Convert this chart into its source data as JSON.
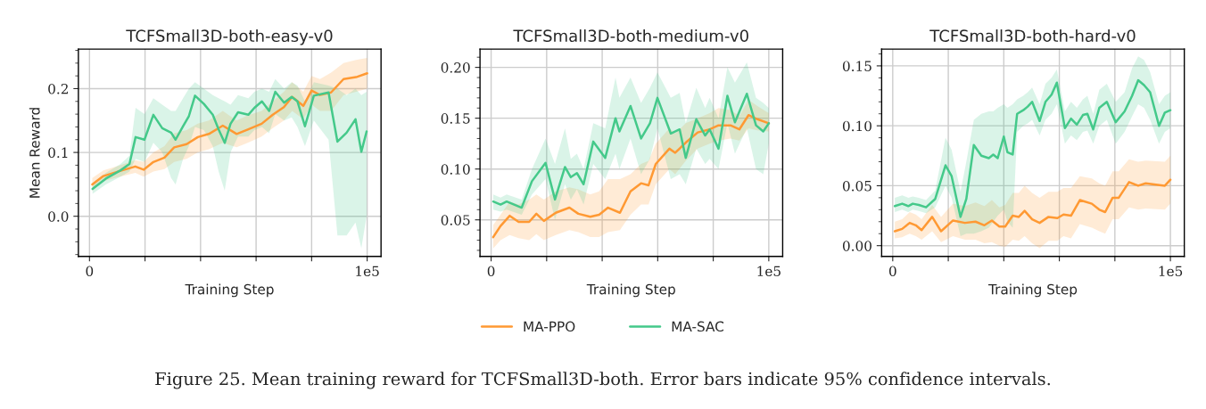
{
  "chart_data": [
    {
      "type": "line",
      "title": "TCFSmall3D-both-easy-v0",
      "xlabel": "Training Step",
      "ylabel": "Mean Reward",
      "grid": true,
      "legend": "bottom",
      "xlim": [
        -4000,
        105000
      ],
      "xticks": [
        0,
        {
          "value": 20000,
          "label": null
        },
        {
          "value": 40000,
          "label": null
        },
        {
          "value": 60000,
          "label": null
        },
        {
          "value": 80000,
          "label": null
        },
        {
          "value": 100000,
          "label": "1e5"
        }
      ],
      "ylim": [
        -0.063,
        0.262
      ],
      "yticks": [
        {
          "value": 0.0,
          "label": "0.0"
        },
        0.1,
        0.2
      ],
      "series": [
        {
          "name": "MA-PPO",
          "color": "#ff9933",
          "x": [
            1000,
            5000,
            11000,
            16500,
            19500,
            23000,
            27000,
            30500,
            35000,
            39000,
            43000,
            48000,
            53000,
            57000,
            62000,
            66000,
            70000,
            73000,
            77000,
            80000,
            83000,
            87000,
            91500,
            96000,
            100000
          ],
          "values": [
            0.05,
            0.063,
            0.071,
            0.078,
            0.073,
            0.085,
            0.092,
            0.108,
            0.113,
            0.124,
            0.129,
            0.142,
            0.129,
            0.136,
            0.145,
            0.159,
            0.171,
            0.187,
            0.173,
            0.197,
            0.19,
            0.194,
            0.215,
            0.218,
            0.224
          ],
          "lower": [
            0.04,
            0.055,
            0.062,
            0.068,
            0.062,
            0.07,
            0.074,
            0.085,
            0.09,
            0.1,
            0.105,
            0.115,
            0.108,
            0.115,
            0.125,
            0.138,
            0.15,
            0.165,
            0.152,
            0.175,
            0.165,
            0.165,
            0.19,
            0.195,
            0.2
          ],
          "upper": [
            0.06,
            0.072,
            0.08,
            0.088,
            0.085,
            0.1,
            0.11,
            0.13,
            0.135,
            0.145,
            0.15,
            0.165,
            0.15,
            0.158,
            0.165,
            0.18,
            0.195,
            0.21,
            0.195,
            0.22,
            0.215,
            0.225,
            0.24,
            0.245,
            0.248
          ]
        },
        {
          "name": "MA-SAC",
          "color": "#44c98a",
          "x": [
            1100,
            5900,
            11200,
            14400,
            16600,
            19800,
            23000,
            26200,
            29400,
            31000,
            33700,
            35800,
            38000,
            41200,
            44400,
            46500,
            48700,
            50800,
            53500,
            57200,
            59400,
            62100,
            64700,
            66900,
            70100,
            72800,
            74900,
            77600,
            80800,
            86100,
            89300,
            92600,
            95800,
            97900,
            99800
          ],
          "values": [
            0.043,
            0.059,
            0.072,
            0.082,
            0.124,
            0.12,
            0.159,
            0.138,
            0.131,
            0.12,
            0.141,
            0.157,
            0.189,
            0.176,
            0.159,
            0.136,
            0.115,
            0.145,
            0.163,
            0.159,
            0.17,
            0.18,
            0.165,
            0.195,
            0.178,
            0.187,
            0.18,
            0.141,
            0.189,
            0.194,
            0.117,
            0.131,
            0.152,
            0.101,
            0.133
          ],
          "lower": [
            0.035,
            0.05,
            0.062,
            0.07,
            0.09,
            0.085,
            0.115,
            0.1,
            0.06,
            0.05,
            0.09,
            0.11,
            0.14,
            0.135,
            0.11,
            0.07,
            0.04,
            0.1,
            0.125,
            0.125,
            0.135,
            0.14,
            0.13,
            0.16,
            0.15,
            0.155,
            0.14,
            0.11,
            0.15,
            0.12,
            -0.03,
            -0.03,
            -0.01,
            -0.05,
            0.0
          ],
          "upper": [
            0.052,
            0.068,
            0.082,
            0.095,
            0.17,
            0.16,
            0.185,
            0.175,
            0.165,
            0.165,
            0.185,
            0.2,
            0.21,
            0.2,
            0.19,
            0.185,
            0.18,
            0.175,
            0.19,
            0.185,
            0.195,
            0.2,
            0.195,
            0.215,
            0.2,
            0.21,
            0.205,
            0.18,
            0.21,
            0.205,
            0.2,
            0.19,
            0.2,
            0.19,
            0.195
          ]
        }
      ]
    },
    {
      "type": "line",
      "title": "TCFSmall3D-both-medium-v0",
      "xlabel": "Training Step",
      "grid": true,
      "annotations": [
        "Figure 25. Mean training reward for TCFSmall3D-both. Error bars indicate 95% confidence intervals."
      ],
      "xlim": [
        -4000,
        105000
      ],
      "xticks": [
        0,
        {
          "value": 20000,
          "label": null
        },
        {
          "value": 40000,
          "label": null
        },
        {
          "value": 60000,
          "label": null
        },
        {
          "value": 80000,
          "label": null
        },
        {
          "value": 100000,
          "label": "1e5"
        }
      ],
      "ylim": [
        0.014,
        0.218
      ],
      "yticks": [
        0.05,
        {
          "value": 0.1,
          "label": "0.10"
        },
        0.15,
        {
          "value": 0.2,
          "label": "0.20"
        }
      ],
      "series": [
        {
          "color": "#ff9933",
          "x": [
            750,
            3400,
            6700,
            9900,
            13700,
            16300,
            19000,
            23300,
            28200,
            31400,
            35700,
            38900,
            42100,
            46400,
            50200,
            54000,
            56700,
            59300,
            64200,
            66300,
            70100,
            74400,
            78700,
            81900,
            86200,
            89400,
            92700,
            95900,
            100000
          ],
          "values": [
            0.033,
            0.044,
            0.054,
            0.048,
            0.048,
            0.056,
            0.049,
            0.057,
            0.062,
            0.056,
            0.053,
            0.055,
            0.062,
            0.057,
            0.078,
            0.086,
            0.084,
            0.105,
            0.12,
            0.116,
            0.126,
            0.136,
            0.139,
            0.143,
            0.143,
            0.139,
            0.153,
            0.149,
            0.145
          ],
          "lower": [
            0.022,
            0.03,
            0.035,
            0.032,
            0.03,
            0.036,
            0.03,
            0.035,
            0.04,
            0.038,
            0.033,
            0.033,
            0.038,
            0.04,
            0.055,
            0.065,
            0.065,
            0.085,
            0.1,
            0.095,
            0.108,
            0.12,
            0.125,
            0.128,
            0.13,
            0.128,
            0.14,
            0.138,
            0.137
          ],
          "upper": [
            0.045,
            0.055,
            0.068,
            0.065,
            0.07,
            0.075,
            0.07,
            0.078,
            0.082,
            0.08,
            0.075,
            0.078,
            0.09,
            0.09,
            0.095,
            0.105,
            0.108,
            0.125,
            0.14,
            0.135,
            0.145,
            0.15,
            0.155,
            0.16,
            0.158,
            0.152,
            0.168,
            0.162,
            0.155
          ]
        },
        {
          "color": "#44c98a",
          "x": [
            750,
            3400,
            5600,
            11000,
            14700,
            19600,
            23000,
            26600,
            28700,
            30900,
            33300,
            36800,
            41100,
            44800,
            46200,
            50200,
            54000,
            57200,
            59900,
            64700,
            67900,
            70100,
            73900,
            77100,
            78700,
            81900,
            85100,
            87800,
            92100,
            95400,
            98000,
            100000
          ],
          "values": [
            0.068,
            0.065,
            0.068,
            0.062,
            0.088,
            0.106,
            0.07,
            0.102,
            0.092,
            0.096,
            0.085,
            0.127,
            0.111,
            0.15,
            0.137,
            0.162,
            0.13,
            0.145,
            0.17,
            0.135,
            0.139,
            0.111,
            0.149,
            0.133,
            0.139,
            0.12,
            0.172,
            0.146,
            0.174,
            0.143,
            0.137,
            0.145
          ],
          "lower": [
            0.06,
            0.058,
            0.06,
            0.055,
            0.075,
            0.09,
            0.05,
            0.085,
            0.07,
            0.08,
            0.065,
            0.105,
            0.09,
            0.115,
            0.1,
            0.13,
            0.095,
            0.11,
            0.14,
            0.09,
            0.095,
            0.085,
            0.12,
            0.105,
            0.11,
            0.1,
            0.145,
            0.115,
            0.14,
            0.1,
            0.095,
            0.125
          ],
          "upper": [
            0.075,
            0.072,
            0.075,
            0.07,
            0.1,
            0.13,
            0.105,
            0.14,
            0.11,
            0.115,
            0.1,
            0.145,
            0.14,
            0.19,
            0.17,
            0.19,
            0.165,
            0.18,
            0.195,
            0.17,
            0.175,
            0.145,
            0.18,
            0.16,
            0.17,
            0.15,
            0.2,
            0.185,
            0.205,
            0.17,
            0.165,
            0.16
          ]
        }
      ]
    },
    {
      "type": "line",
      "title": "TCFSmall3D-both-hard-v0",
      "xlabel": "Training Step",
      "grid": true,
      "xlim": [
        -4000,
        105000
      ],
      "xticks": [
        0,
        {
          "value": 20000,
          "label": null
        },
        {
          "value": 40000,
          "label": null
        },
        {
          "value": 60000,
          "label": null
        },
        {
          "value": 80000,
          "label": null
        },
        {
          "value": 100000,
          "label": "1e5"
        }
      ],
      "ylim": [
        -0.009,
        0.164
      ],
      "yticks": [
        {
          "value": 0.0,
          "label": "0.00"
        },
        0.05,
        {
          "value": 0.1,
          "label": "0.10"
        },
        0.15
      ],
      "series": [
        {
          "color": "#ff9933",
          "x": [
            750,
            3400,
            6100,
            8300,
            10400,
            14200,
            17400,
            21700,
            26000,
            29800,
            33000,
            35700,
            38400,
            40500,
            43200,
            45400,
            47500,
            50200,
            52900,
            56100,
            59300,
            61500,
            64200,
            67400,
            71700,
            74400,
            76500,
            79200,
            81400,
            85100,
            88400,
            91100,
            98000,
            100000
          ],
          "values": [
            0.012,
            0.014,
            0.019,
            0.017,
            0.013,
            0.024,
            0.012,
            0.021,
            0.019,
            0.02,
            0.017,
            0.021,
            0.016,
            0.016,
            0.025,
            0.024,
            0.029,
            0.022,
            0.019,
            0.024,
            0.023,
            0.026,
            0.025,
            0.038,
            0.035,
            0.03,
            0.028,
            0.04,
            0.04,
            0.053,
            0.05,
            0.052,
            0.05,
            0.055
          ],
          "lower": [
            0.006,
            0.007,
            0.01,
            0.008,
            0.005,
            0.012,
            0.003,
            0.008,
            0.005,
            0.005,
            0.002,
            0.003,
            0.0,
            -0.001,
            0.005,
            0.004,
            0.008,
            0.002,
            -0.002,
            0.004,
            0.004,
            0.008,
            0.006,
            0.018,
            0.015,
            0.012,
            0.01,
            0.022,
            0.022,
            0.032,
            0.03,
            0.031,
            0.03,
            0.035
          ],
          "upper": [
            0.02,
            0.022,
            0.028,
            0.026,
            0.022,
            0.034,
            0.024,
            0.035,
            0.033,
            0.036,
            0.033,
            0.038,
            0.032,
            0.034,
            0.044,
            0.044,
            0.05,
            0.044,
            0.04,
            0.045,
            0.045,
            0.048,
            0.048,
            0.058,
            0.056,
            0.052,
            0.05,
            0.062,
            0.062,
            0.072,
            0.07,
            0.071,
            0.07,
            0.075
          ]
        },
        {
          "color": "#44c98a",
          "x": [
            750,
            3400,
            5600,
            7200,
            9400,
            12000,
            15300,
            19000,
            21200,
            24400,
            26500,
            29200,
            31900,
            34600,
            36200,
            37800,
            40000,
            41300,
            43200,
            44800,
            47000,
            48600,
            50200,
            52900,
            55000,
            57200,
            59100,
            62000,
            64200,
            66300,
            68500,
            70100,
            72200,
            74400,
            77100,
            80300,
            83500,
            86200,
            88400,
            90500,
            92700,
            95900,
            98000,
            100000
          ],
          "values": [
            0.033,
            0.035,
            0.033,
            0.035,
            0.034,
            0.032,
            0.039,
            0.067,
            0.058,
            0.024,
            0.039,
            0.084,
            0.075,
            0.073,
            0.076,
            0.073,
            0.091,
            0.078,
            0.076,
            0.11,
            0.113,
            0.116,
            0.12,
            0.104,
            0.12,
            0.126,
            0.136,
            0.098,
            0.106,
            0.101,
            0.109,
            0.11,
            0.097,
            0.115,
            0.12,
            0.103,
            0.112,
            0.125,
            0.138,
            0.134,
            0.128,
            0.1,
            0.111,
            0.113
          ],
          "lower": [
            0.028,
            0.03,
            0.028,
            0.03,
            0.029,
            0.027,
            0.032,
            0.05,
            0.04,
            0.008,
            0.01,
            0.01,
            0.012,
            0.015,
            0.02,
            0.025,
            0.03,
            0.02,
            0.015,
            0.095,
            0.1,
            0.102,
            0.105,
            0.092,
            0.105,
            0.11,
            0.118,
            0.085,
            0.092,
            0.088,
            0.095,
            0.096,
            0.085,
            0.1,
            0.105,
            0.085,
            0.095,
            0.108,
            0.118,
            0.115,
            0.105,
            0.085,
            0.095,
            0.098
          ],
          "upper": [
            0.04,
            0.042,
            0.04,
            0.041,
            0.04,
            0.038,
            0.046,
            0.09,
            0.08,
            0.045,
            0.07,
            0.105,
            0.11,
            0.112,
            0.112,
            0.115,
            0.118,
            0.115,
            0.118,
            0.122,
            0.125,
            0.128,
            0.132,
            0.118,
            0.135,
            0.14,
            0.147,
            0.112,
            0.12,
            0.115,
            0.122,
            0.125,
            0.11,
            0.13,
            0.135,
            0.12,
            0.128,
            0.148,
            0.158,
            0.155,
            0.145,
            0.118,
            0.125,
            0.128
          ]
        }
      ]
    }
  ]
}
